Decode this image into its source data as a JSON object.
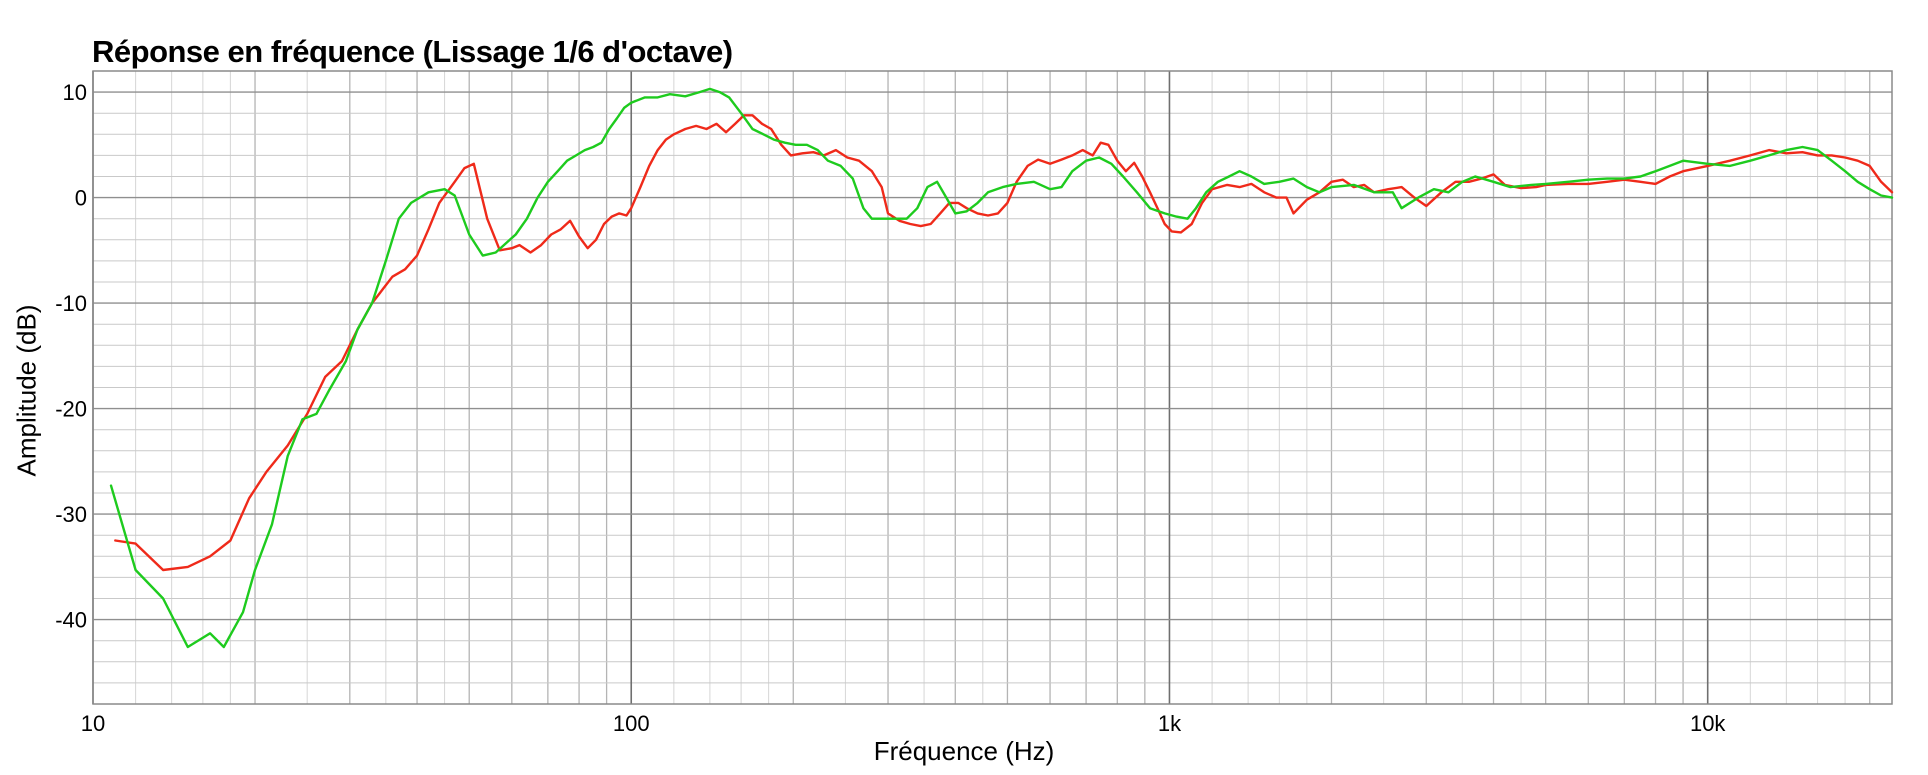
{
  "chart_data": {
    "type": "line",
    "title": "Réponse en fréquence (Lissage 1/6 d'octave)",
    "xlabel": "Fréquence (Hz)",
    "ylabel": "Amplitude (dB)",
    "x_scale": "log",
    "xlim": [
      10,
      22000
    ],
    "ylim": [
      -48,
      12
    ],
    "grid": true,
    "x_ticks": [
      {
        "value": 10,
        "label": "10"
      },
      {
        "value": 100,
        "label": "100"
      },
      {
        "value": 1000,
        "label": "1k"
      },
      {
        "value": 10000,
        "label": "10k"
      }
    ],
    "y_ticks": [
      {
        "value": 10,
        "label": "10"
      },
      {
        "value": 0,
        "label": "0"
      },
      {
        "value": -10,
        "label": "-10"
      },
      {
        "value": -20,
        "label": "-20"
      },
      {
        "value": -30,
        "label": "-30"
      },
      {
        "value": -40,
        "label": "-40"
      }
    ],
    "series": [
      {
        "color": "#ef2a1a",
        "points": [
          [
            11,
            -32.5
          ],
          [
            12,
            -32.8
          ],
          [
            13.5,
            -35.3
          ],
          [
            15,
            -35
          ],
          [
            16.5,
            -34
          ],
          [
            18,
            -32.5
          ],
          [
            19.5,
            -28.5
          ],
          [
            21,
            -26
          ],
          [
            23,
            -23.5
          ],
          [
            25,
            -20.5
          ],
          [
            27,
            -17
          ],
          [
            29,
            -15.5
          ],
          [
            31,
            -12.5
          ],
          [
            33,
            -10
          ],
          [
            36,
            -7.5
          ],
          [
            38,
            -6.8
          ],
          [
            40,
            -5.5
          ],
          [
            42,
            -3
          ],
          [
            44,
            -0.5
          ],
          [
            47,
            1.5
          ],
          [
            49,
            2.8
          ],
          [
            51,
            3.2
          ],
          [
            54,
            -2
          ],
          [
            57,
            -5
          ],
          [
            60,
            -4.8
          ],
          [
            62,
            -4.5
          ],
          [
            65,
            -5.2
          ],
          [
            68,
            -4.5
          ],
          [
            71,
            -3.5
          ],
          [
            74,
            -3
          ],
          [
            77,
            -2.2
          ],
          [
            80,
            -3.7
          ],
          [
            83,
            -4.8
          ],
          [
            86,
            -4
          ],
          [
            89,
            -2.5
          ],
          [
            92,
            -1.8
          ],
          [
            95,
            -1.5
          ],
          [
            98,
            -1.7
          ],
          [
            100,
            -1
          ],
          [
            104,
            1
          ],
          [
            108,
            3
          ],
          [
            112,
            4.5
          ],
          [
            116,
            5.5
          ],
          [
            120,
            6
          ],
          [
            126,
            6.5
          ],
          [
            132,
            6.8
          ],
          [
            138,
            6.5
          ],
          [
            144,
            7
          ],
          [
            150,
            6.2
          ],
          [
            156,
            7
          ],
          [
            162,
            7.8
          ],
          [
            168,
            7.8
          ],
          [
            175,
            7
          ],
          [
            182,
            6.5
          ],
          [
            190,
            5
          ],
          [
            198,
            4
          ],
          [
            208,
            4.2
          ],
          [
            218,
            4.3
          ],
          [
            228,
            4
          ],
          [
            240,
            4.5
          ],
          [
            252,
            3.8
          ],
          [
            265,
            3.5
          ],
          [
            280,
            2.5
          ],
          [
            292,
            1
          ],
          [
            300,
            -1.5
          ],
          [
            315,
            -2.2
          ],
          [
            330,
            -2.5
          ],
          [
            345,
            -2.7
          ],
          [
            360,
            -2.5
          ],
          [
            375,
            -1.5
          ],
          [
            390,
            -0.5
          ],
          [
            405,
            -0.5
          ],
          [
            420,
            -1
          ],
          [
            440,
            -1.5
          ],
          [
            460,
            -1.7
          ],
          [
            480,
            -1.5
          ],
          [
            500,
            -0.5
          ],
          [
            520,
            1.5
          ],
          [
            545,
            3
          ],
          [
            570,
            3.6
          ],
          [
            600,
            3.2
          ],
          [
            630,
            3.6
          ],
          [
            660,
            4
          ],
          [
            690,
            4.5
          ],
          [
            720,
            4
          ],
          [
            745,
            5.2
          ],
          [
            770,
            5
          ],
          [
            800,
            3.5
          ],
          [
            830,
            2.5
          ],
          [
            860,
            3.3
          ],
          [
            890,
            2
          ],
          [
            920,
            0.5
          ],
          [
            950,
            -1
          ],
          [
            980,
            -2.5
          ],
          [
            1010,
            -3.2
          ],
          [
            1050,
            -3.3
          ],
          [
            1100,
            -2.5
          ],
          [
            1150,
            -0.5
          ],
          [
            1200,
            0.8
          ],
          [
            1280,
            1.2
          ],
          [
            1350,
            1
          ],
          [
            1420,
            1.3
          ],
          [
            1500,
            0.5
          ],
          [
            1580,
            0
          ],
          [
            1650,
            0
          ],
          [
            1700,
            -1.5
          ],
          [
            1800,
            -0.2
          ],
          [
            1900,
            0.5
          ],
          [
            2000,
            1.5
          ],
          [
            2100,
            1.7
          ],
          [
            2200,
            1
          ],
          [
            2300,
            1.2
          ],
          [
            2400,
            0.5
          ],
          [
            2550,
            0.8
          ],
          [
            2700,
            1
          ],
          [
            2850,
            0
          ],
          [
            3000,
            -0.8
          ],
          [
            3200,
            0.5
          ],
          [
            3400,
            1.5
          ],
          [
            3600,
            1.5
          ],
          [
            3800,
            1.8
          ],
          [
            4000,
            2.2
          ],
          [
            4200,
            1.2
          ],
          [
            4500,
            0.9
          ],
          [
            4800,
            1
          ],
          [
            5000,
            1.2
          ],
          [
            5500,
            1.3
          ],
          [
            6000,
            1.3
          ],
          [
            6500,
            1.5
          ],
          [
            7000,
            1.7
          ],
          [
            7500,
            1.5
          ],
          [
            8000,
            1.3
          ],
          [
            8500,
            2
          ],
          [
            9000,
            2.5
          ],
          [
            10000,
            3
          ],
          [
            11000,
            3.5
          ],
          [
            12000,
            4
          ],
          [
            13000,
            4.5
          ],
          [
            14000,
            4.2
          ],
          [
            15000,
            4.3
          ],
          [
            16000,
            4
          ],
          [
            17000,
            4
          ],
          [
            18000,
            3.8
          ],
          [
            19000,
            3.5
          ],
          [
            20000,
            3
          ],
          [
            21000,
            1.5
          ],
          [
            22000,
            0.5
          ]
        ]
      },
      {
        "color": "#1ecb1e",
        "points": [
          [
            10.8,
            -27.3
          ],
          [
            12,
            -35.3
          ],
          [
            13.5,
            -38
          ],
          [
            15,
            -42.6
          ],
          [
            16.5,
            -41.3
          ],
          [
            17.5,
            -42.6
          ],
          [
            19,
            -39.3
          ],
          [
            20,
            -35.3
          ],
          [
            21.5,
            -31
          ],
          [
            23,
            -24.5
          ],
          [
            24.5,
            -21
          ],
          [
            26,
            -20.5
          ],
          [
            27.5,
            -18.2
          ],
          [
            29.5,
            -15.5
          ],
          [
            31,
            -12.5
          ],
          [
            33,
            -10
          ],
          [
            35,
            -6
          ],
          [
            37,
            -2
          ],
          [
            39,
            -0.5
          ],
          [
            42,
            0.5
          ],
          [
            45,
            0.8
          ],
          [
            47,
            0.2
          ],
          [
            50,
            -3.5
          ],
          [
            53,
            -5.5
          ],
          [
            56,
            -5.2
          ],
          [
            58,
            -4.5
          ],
          [
            61,
            -3.5
          ],
          [
            64,
            -2
          ],
          [
            67,
            0
          ],
          [
            70,
            1.5
          ],
          [
            73,
            2.5
          ],
          [
            76,
            3.5
          ],
          [
            79,
            4
          ],
          [
            82,
            4.5
          ],
          [
            85,
            4.8
          ],
          [
            88,
            5.2
          ],
          [
            91,
            6.5
          ],
          [
            94,
            7.5
          ],
          [
            97,
            8.5
          ],
          [
            100,
            9
          ],
          [
            106,
            9.5
          ],
          [
            112,
            9.5
          ],
          [
            118,
            9.8
          ],
          [
            126,
            9.6
          ],
          [
            134,
            10
          ],
          [
            140,
            10.3
          ],
          [
            146,
            10
          ],
          [
            152,
            9.5
          ],
          [
            160,
            8
          ],
          [
            168,
            6.5
          ],
          [
            176,
            6
          ],
          [
            184,
            5.5
          ],
          [
            193,
            5.2
          ],
          [
            202,
            5
          ],
          [
            212,
            5
          ],
          [
            222,
            4.5
          ],
          [
            232,
            3.5
          ],
          [
            245,
            3
          ],
          [
            258,
            1.8
          ],
          [
            270,
            -1
          ],
          [
            280,
            -2
          ],
          [
            295,
            -2
          ],
          [
            310,
            -2
          ],
          [
            325,
            -2
          ],
          [
            340,
            -1
          ],
          [
            355,
            1
          ],
          [
            370,
            1.5
          ],
          [
            385,
            0
          ],
          [
            400,
            -1.5
          ],
          [
            420,
            -1.3
          ],
          [
            440,
            -0.5
          ],
          [
            460,
            0.5
          ],
          [
            490,
            1
          ],
          [
            520,
            1.3
          ],
          [
            560,
            1.5
          ],
          [
            600,
            0.8
          ],
          [
            630,
            1
          ],
          [
            660,
            2.5
          ],
          [
            700,
            3.5
          ],
          [
            740,
            3.8
          ],
          [
            780,
            3.2
          ],
          [
            820,
            2
          ],
          [
            870,
            0.5
          ],
          [
            920,
            -1
          ],
          [
            980,
            -1.5
          ],
          [
            1030,
            -1.8
          ],
          [
            1080,
            -2
          ],
          [
            1120,
            -1
          ],
          [
            1170,
            0.5
          ],
          [
            1230,
            1.5
          ],
          [
            1290,
            2
          ],
          [
            1350,
            2.5
          ],
          [
            1420,
            2
          ],
          [
            1500,
            1.3
          ],
          [
            1600,
            1.5
          ],
          [
            1700,
            1.8
          ],
          [
            1800,
            1
          ],
          [
            1900,
            0.5
          ],
          [
            2000,
            1
          ],
          [
            2200,
            1.2
          ],
          [
            2400,
            0.5
          ],
          [
            2600,
            0.5
          ],
          [
            2700,
            -1
          ],
          [
            2900,
            0
          ],
          [
            3100,
            0.8
          ],
          [
            3300,
            0.5
          ],
          [
            3500,
            1.5
          ],
          [
            3700,
            2
          ],
          [
            4000,
            1.5
          ],
          [
            4300,
            1
          ],
          [
            4700,
            1.2
          ],
          [
            5000,
            1.3
          ],
          [
            5500,
            1.5
          ],
          [
            6000,
            1.7
          ],
          [
            6500,
            1.8
          ],
          [
            7000,
            1.8
          ],
          [
            7500,
            2
          ],
          [
            8000,
            2.5
          ],
          [
            8500,
            3
          ],
          [
            9000,
            3.5
          ],
          [
            10000,
            3.2
          ],
          [
            11000,
            3
          ],
          [
            12000,
            3.5
          ],
          [
            13000,
            4
          ],
          [
            14000,
            4.5
          ],
          [
            15000,
            4.8
          ],
          [
            16000,
            4.5
          ],
          [
            17000,
            3.5
          ],
          [
            18000,
            2.5
          ],
          [
            19000,
            1.5
          ],
          [
            20000,
            0.8
          ],
          [
            21000,
            0.2
          ],
          [
            22000,
            0
          ]
        ]
      }
    ]
  }
}
